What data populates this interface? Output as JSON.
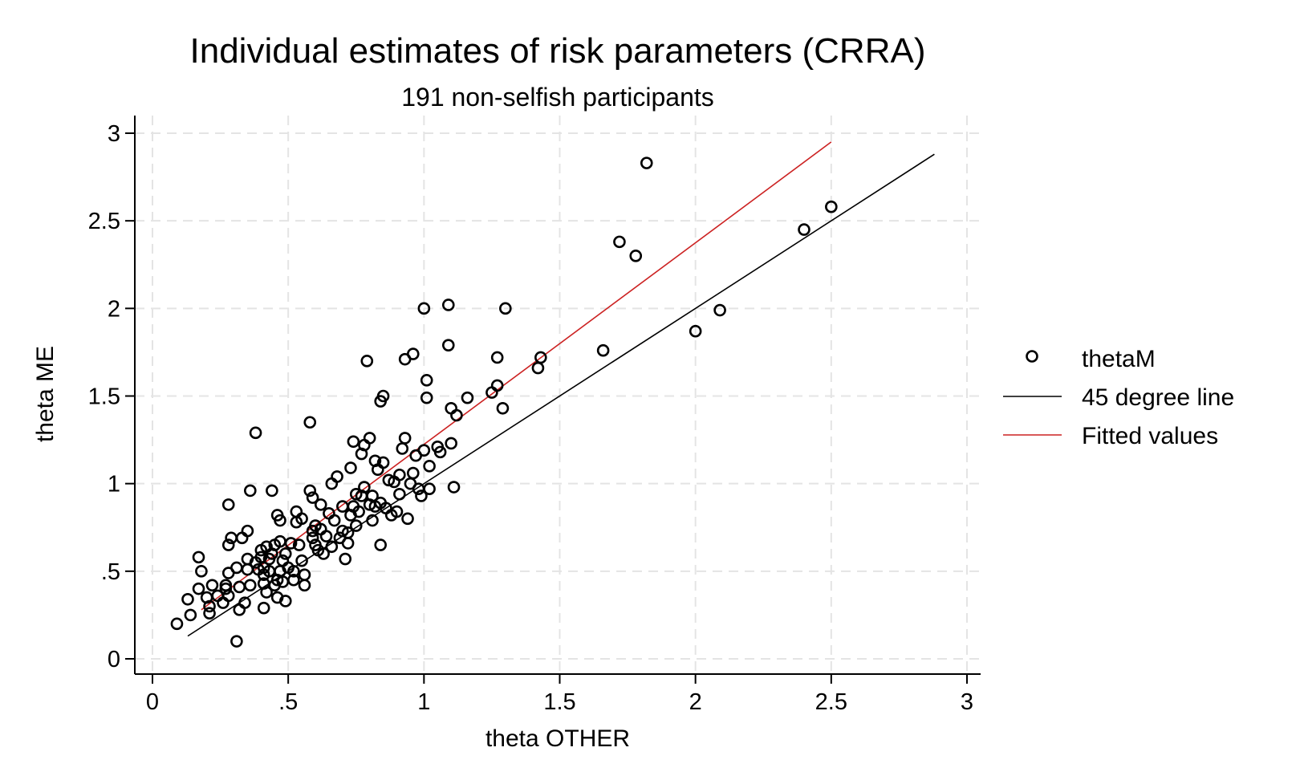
{
  "chart_data": {
    "type": "scatter",
    "title": "Individual estimates of risk parameters (CRRA)",
    "subtitle": "191 non-selfish participants",
    "xlabel": "theta OTHER",
    "ylabel": "theta ME",
    "xlim": [
      0,
      3
    ],
    "ylim": [
      0,
      3
    ],
    "xticks": [
      0,
      0.5,
      1,
      1.5,
      2,
      2.5,
      3
    ],
    "xtick_labels": [
      "0",
      ".5",
      "1",
      "1.5",
      "2",
      "2.5",
      "3"
    ],
    "yticks": [
      0,
      0.5,
      1,
      1.5,
      2,
      2.5,
      3
    ],
    "ytick_labels": [
      "0",
      ".5",
      "1",
      "1.5",
      "2",
      "2.5",
      "3"
    ],
    "grid": true,
    "legend_position": "right",
    "colors": {
      "points": "#000000",
      "degree_line": "#000000",
      "fitted": "#cc2222",
      "grid": "#e4e4e4"
    },
    "series": [
      {
        "name": "thetaM",
        "kind": "scatter",
        "points": [
          [
            0.09,
            0.2
          ],
          [
            0.14,
            0.25
          ],
          [
            0.13,
            0.34
          ],
          [
            0.17,
            0.58
          ],
          [
            0.17,
            0.4
          ],
          [
            0.18,
            0.5
          ],
          [
            0.2,
            0.35
          ],
          [
            0.21,
            0.3
          ],
          [
            0.21,
            0.26
          ],
          [
            0.22,
            0.42
          ],
          [
            0.24,
            0.36
          ],
          [
            0.26,
            0.32
          ],
          [
            0.27,
            0.42
          ],
          [
            0.27,
            0.4
          ],
          [
            0.28,
            0.36
          ],
          [
            0.28,
            0.65
          ],
          [
            0.28,
            0.49
          ],
          [
            0.28,
            0.88
          ],
          [
            0.29,
            0.69
          ],
          [
            0.31,
            0.52
          ],
          [
            0.31,
            0.1
          ],
          [
            0.32,
            0.28
          ],
          [
            0.32,
            0.41
          ],
          [
            0.33,
            0.69
          ],
          [
            0.34,
            0.32
          ],
          [
            0.35,
            0.57
          ],
          [
            0.35,
            0.51
          ],
          [
            0.35,
            0.73
          ],
          [
            0.36,
            0.42
          ],
          [
            0.36,
            0.96
          ],
          [
            0.38,
            1.29
          ],
          [
            0.38,
            0.55
          ],
          [
            0.39,
            0.51
          ],
          [
            0.4,
            0.58
          ],
          [
            0.4,
            0.62
          ],
          [
            0.41,
            0.52
          ],
          [
            0.41,
            0.48
          ],
          [
            0.41,
            0.29
          ],
          [
            0.41,
            0.43
          ],
          [
            0.42,
            0.64
          ],
          [
            0.42,
            0.38
          ],
          [
            0.43,
            0.57
          ],
          [
            0.43,
            0.5
          ],
          [
            0.44,
            0.96
          ],
          [
            0.44,
            0.6
          ],
          [
            0.45,
            0.65
          ],
          [
            0.45,
            0.42
          ],
          [
            0.46,
            0.45
          ],
          [
            0.46,
            0.35
          ],
          [
            0.46,
            0.82
          ],
          [
            0.47,
            0.79
          ],
          [
            0.47,
            0.5
          ],
          [
            0.47,
            0.67
          ],
          [
            0.48,
            0.56
          ],
          [
            0.48,
            0.44
          ],
          [
            0.49,
            0.33
          ],
          [
            0.49,
            0.6
          ],
          [
            0.5,
            0.52
          ],
          [
            0.51,
            0.66
          ],
          [
            0.52,
            0.45
          ],
          [
            0.52,
            0.5
          ],
          [
            0.53,
            0.84
          ],
          [
            0.53,
            0.78
          ],
          [
            0.54,
            0.65
          ],
          [
            0.55,
            0.56
          ],
          [
            0.55,
            0.8
          ],
          [
            0.56,
            0.48
          ],
          [
            0.56,
            0.42
          ],
          [
            0.58,
            1.35
          ],
          [
            0.58,
            0.96
          ],
          [
            0.59,
            0.92
          ],
          [
            0.59,
            0.73
          ],
          [
            0.59,
            0.69
          ],
          [
            0.6,
            0.65
          ],
          [
            0.6,
            0.76
          ],
          [
            0.61,
            0.62
          ],
          [
            0.62,
            0.88
          ],
          [
            0.62,
            0.74
          ],
          [
            0.63,
            0.6
          ],
          [
            0.64,
            0.7
          ],
          [
            0.65,
            0.83
          ],
          [
            0.66,
            0.64
          ],
          [
            0.66,
            1.0
          ],
          [
            0.67,
            0.79
          ],
          [
            0.68,
            1.04
          ],
          [
            0.69,
            0.69
          ],
          [
            0.7,
            0.87
          ],
          [
            0.7,
            0.73
          ],
          [
            0.71,
            0.57
          ],
          [
            0.72,
            0.66
          ],
          [
            0.72,
            0.72
          ],
          [
            0.73,
            1.09
          ],
          [
            0.73,
            0.82
          ],
          [
            0.74,
            1.24
          ],
          [
            0.74,
            0.87
          ],
          [
            0.75,
            0.76
          ],
          [
            0.75,
            0.94
          ],
          [
            0.76,
            0.84
          ],
          [
            0.77,
            1.17
          ],
          [
            0.77,
            0.93
          ],
          [
            0.78,
            0.98
          ],
          [
            0.78,
            1.22
          ],
          [
            0.79,
            1.7
          ],
          [
            0.8,
            0.88
          ],
          [
            0.8,
            1.26
          ],
          [
            0.81,
            0.93
          ],
          [
            0.81,
            0.79
          ],
          [
            0.82,
            1.13
          ],
          [
            0.82,
            0.87
          ],
          [
            0.83,
            1.08
          ],
          [
            0.84,
            0.65
          ],
          [
            0.84,
            0.89
          ],
          [
            0.84,
            1.47
          ],
          [
            0.85,
            1.5
          ],
          [
            0.85,
            1.12
          ],
          [
            0.86,
            0.86
          ],
          [
            0.87,
            1.02
          ],
          [
            0.88,
            0.82
          ],
          [
            0.89,
            1.01
          ],
          [
            0.9,
            0.84
          ],
          [
            0.91,
            1.05
          ],
          [
            0.91,
            0.94
          ],
          [
            0.92,
            1.2
          ],
          [
            0.93,
            1.26
          ],
          [
            0.93,
            1.71
          ],
          [
            0.94,
            0.8
          ],
          [
            0.95,
            1.0
          ],
          [
            0.96,
            1.06
          ],
          [
            0.96,
            1.74
          ],
          [
            0.97,
            1.16
          ],
          [
            0.98,
            0.97
          ],
          [
            0.99,
            0.93
          ],
          [
            1.0,
            1.19
          ],
          [
            1.0,
            2.0
          ],
          [
            1.01,
            1.59
          ],
          [
            1.01,
            1.49
          ],
          [
            1.02,
            1.1
          ],
          [
            1.02,
            0.97
          ],
          [
            1.05,
            1.21
          ],
          [
            1.06,
            1.18
          ],
          [
            1.09,
            1.79
          ],
          [
            1.09,
            2.02
          ],
          [
            1.1,
            1.43
          ],
          [
            1.1,
            1.23
          ],
          [
            1.11,
            0.98
          ],
          [
            1.12,
            1.39
          ],
          [
            1.16,
            1.49
          ],
          [
            1.25,
            1.52
          ],
          [
            1.27,
            1.56
          ],
          [
            1.27,
            1.72
          ],
          [
            1.29,
            1.43
          ],
          [
            1.3,
            2.0
          ],
          [
            1.42,
            1.66
          ],
          [
            1.43,
            1.72
          ],
          [
            1.66,
            1.76
          ],
          [
            1.72,
            2.38
          ],
          [
            1.78,
            2.3
          ],
          [
            1.82,
            2.83
          ],
          [
            2.0,
            1.87
          ],
          [
            2.09,
            1.99
          ],
          [
            2.4,
            2.45
          ],
          [
            2.5,
            2.58
          ]
        ]
      },
      {
        "name": "45 degree line",
        "kind": "line",
        "points": [
          [
            0.13,
            0.13
          ],
          [
            2.88,
            2.88
          ]
        ]
      },
      {
        "name": "Fitted values",
        "kind": "line",
        "points": [
          [
            0.18,
            0.28
          ],
          [
            2.5,
            2.95
          ]
        ]
      }
    ]
  }
}
